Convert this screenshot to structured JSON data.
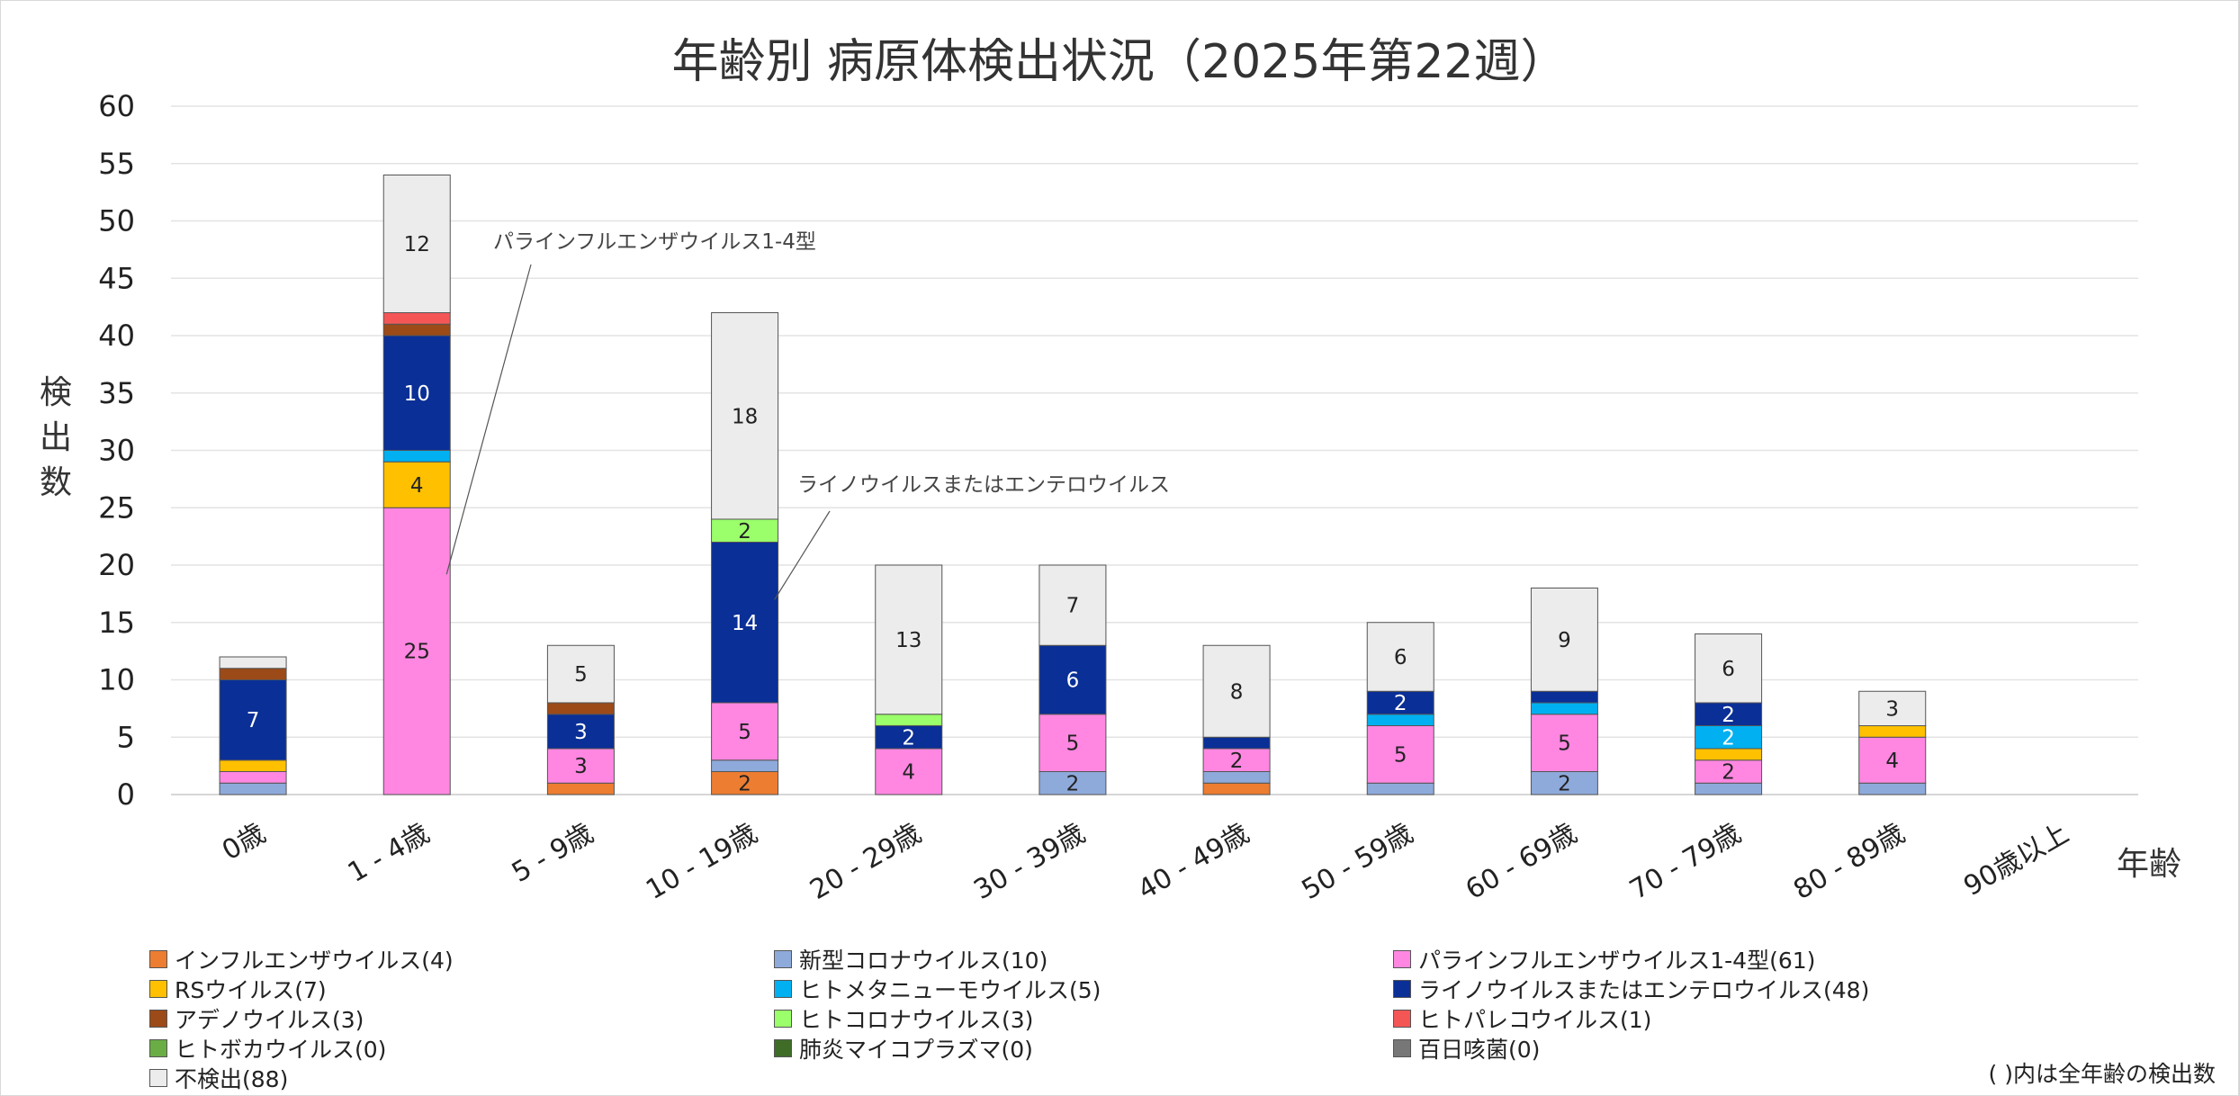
{
  "chart_data": {
    "type": "bar",
    "stacked": true,
    "title": "年齢別 病原体検出状況（2025年第22週）",
    "ylabel": "検出数",
    "xlabel": "年齢",
    "ylim": [
      0,
      60
    ],
    "yticks": [
      0,
      5,
      10,
      15,
      20,
      25,
      30,
      35,
      40,
      45,
      50,
      55,
      60
    ],
    "grid": true,
    "categories": [
      "0歳",
      "1 - 4歳",
      "5 - 9歳",
      "10 - 19歳",
      "20 - 29歳",
      "30 - 39歳",
      "40 - 49歳",
      "50 - 59歳",
      "60 - 69歳",
      "70 - 79歳",
      "80 - 89歳",
      "90歳以上"
    ],
    "series": [
      {
        "name": "インフルエンザウイルス",
        "total": "(4)",
        "color": "#ed7d31",
        "values": [
          0,
          0,
          1,
          2,
          0,
          0,
          1,
          0,
          0,
          0,
          0,
          0
        ]
      },
      {
        "name": "新型コロナウイルス",
        "total": "(10)",
        "color": "#8eaadb",
        "values": [
          1,
          0,
          0,
          1,
          0,
          2,
          1,
          1,
          2,
          1,
          1,
          0
        ]
      },
      {
        "name": "パラインフルエンザウイルス1-4型",
        "total": "(61)",
        "color": "#ff87e1",
        "values": [
          1,
          25,
          3,
          5,
          4,
          5,
          2,
          5,
          5,
          2,
          4,
          0
        ]
      },
      {
        "name": "RSウイルス",
        "total": "(7)",
        "color": "#ffc000",
        "values": [
          1,
          4,
          0,
          0,
          0,
          0,
          0,
          0,
          0,
          1,
          1,
          0
        ]
      },
      {
        "name": "ヒトメタニューモウイルス",
        "total": "(5)",
        "color": "#00b0f0",
        "values": [
          0,
          1,
          0,
          0,
          0,
          0,
          0,
          1,
          1,
          2,
          0,
          0
        ]
      },
      {
        "name": "ライノウイルスまたはエンテロウイルス",
        "total": "(48)",
        "color": "#0a2f96",
        "values": [
          7,
          10,
          3,
          14,
          2,
          6,
          1,
          2,
          1,
          2,
          0,
          0
        ]
      },
      {
        "name": "アデノウイルス",
        "total": "(3)",
        "color": "#9c4a18",
        "values": [
          1,
          1,
          1,
          0,
          0,
          0,
          0,
          0,
          0,
          0,
          0,
          0
        ]
      },
      {
        "name": "ヒトコロナウイルス",
        "total": "(3)",
        "color": "#9aff6a",
        "values": [
          0,
          0,
          0,
          2,
          1,
          0,
          0,
          0,
          0,
          0,
          0,
          0
        ]
      },
      {
        "name": "ヒトパレコウイルス",
        "total": "(1)",
        "color": "#f45656",
        "values": [
          0,
          1,
          0,
          0,
          0,
          0,
          0,
          0,
          0,
          0,
          0,
          0
        ]
      },
      {
        "name": "ヒトボカウイルス",
        "total": "(0)",
        "color": "#6aad45",
        "values": [
          0,
          0,
          0,
          0,
          0,
          0,
          0,
          0,
          0,
          0,
          0,
          0
        ]
      },
      {
        "name": "肺炎マイコプラズマ",
        "total": "(0)",
        "color": "#3f6d28",
        "values": [
          0,
          0,
          0,
          0,
          0,
          0,
          0,
          0,
          0,
          0,
          0,
          0
        ]
      },
      {
        "name": "百日咳菌",
        "total": "(0)",
        "color": "#777777",
        "values": [
          0,
          0,
          0,
          0,
          0,
          0,
          0,
          0,
          0,
          0,
          0,
          0
        ]
      },
      {
        "name": "不検出",
        "total": "(88)",
        "color": "#ececec",
        "values": [
          1,
          12,
          5,
          18,
          13,
          7,
          8,
          6,
          9,
          6,
          3,
          0
        ]
      }
    ],
    "data_labels": [
      {
        "category": 0,
        "series": 5,
        "text": "7"
      },
      {
        "category": 1,
        "series": 2,
        "text": "25"
      },
      {
        "category": 1,
        "series": 3,
        "text": "4"
      },
      {
        "category": 1,
        "series": 5,
        "text": "10"
      },
      {
        "category": 1,
        "series": 12,
        "text": "12"
      },
      {
        "category": 2,
        "series": 2,
        "text": "3"
      },
      {
        "category": 2,
        "series": 5,
        "text": "3"
      },
      {
        "category": 2,
        "series": 12,
        "text": "5"
      },
      {
        "category": 3,
        "series": 0,
        "text": "2"
      },
      {
        "category": 3,
        "series": 2,
        "text": "5"
      },
      {
        "category": 3,
        "series": 5,
        "text": "14"
      },
      {
        "category": 3,
        "series": 7,
        "text": "2"
      },
      {
        "category": 3,
        "series": 12,
        "text": "18"
      },
      {
        "category": 4,
        "series": 2,
        "text": "4"
      },
      {
        "category": 4,
        "series": 5,
        "text": "2"
      },
      {
        "category": 4,
        "series": 12,
        "text": "13"
      },
      {
        "category": 5,
        "series": 1,
        "text": "2"
      },
      {
        "category": 5,
        "series": 2,
        "text": "5"
      },
      {
        "category": 5,
        "series": 5,
        "text": "6"
      },
      {
        "category": 5,
        "series": 12,
        "text": "7"
      },
      {
        "category": 6,
        "series": 2,
        "text": "2"
      },
      {
        "category": 6,
        "series": 12,
        "text": "8"
      },
      {
        "category": 7,
        "series": 2,
        "text": "5"
      },
      {
        "category": 7,
        "series": 5,
        "text": "2"
      },
      {
        "category": 7,
        "series": 12,
        "text": "6"
      },
      {
        "category": 8,
        "series": 1,
        "text": "2"
      },
      {
        "category": 8,
        "series": 2,
        "text": "5"
      },
      {
        "category": 8,
        "series": 12,
        "text": "9"
      },
      {
        "category": 9,
        "series": 2,
        "text": "2"
      },
      {
        "category": 9,
        "series": 4,
        "text": "2"
      },
      {
        "category": 9,
        "series": 5,
        "text": "2"
      },
      {
        "category": 9,
        "series": 12,
        "text": "6"
      },
      {
        "category": 10,
        "series": 2,
        "text": "4"
      },
      {
        "category": 10,
        "series": 12,
        "text": "3"
      }
    ],
    "annotations": [
      {
        "text": "パラインフルエンザウイルス1-4型",
        "category": 1,
        "series": 2
      },
      {
        "text": "ライノウイルスまたはエンテロウイルス",
        "category": 3,
        "series": 5
      }
    ],
    "legend_position": "bottom"
  },
  "note": "( )内は全年齢の検出数"
}
